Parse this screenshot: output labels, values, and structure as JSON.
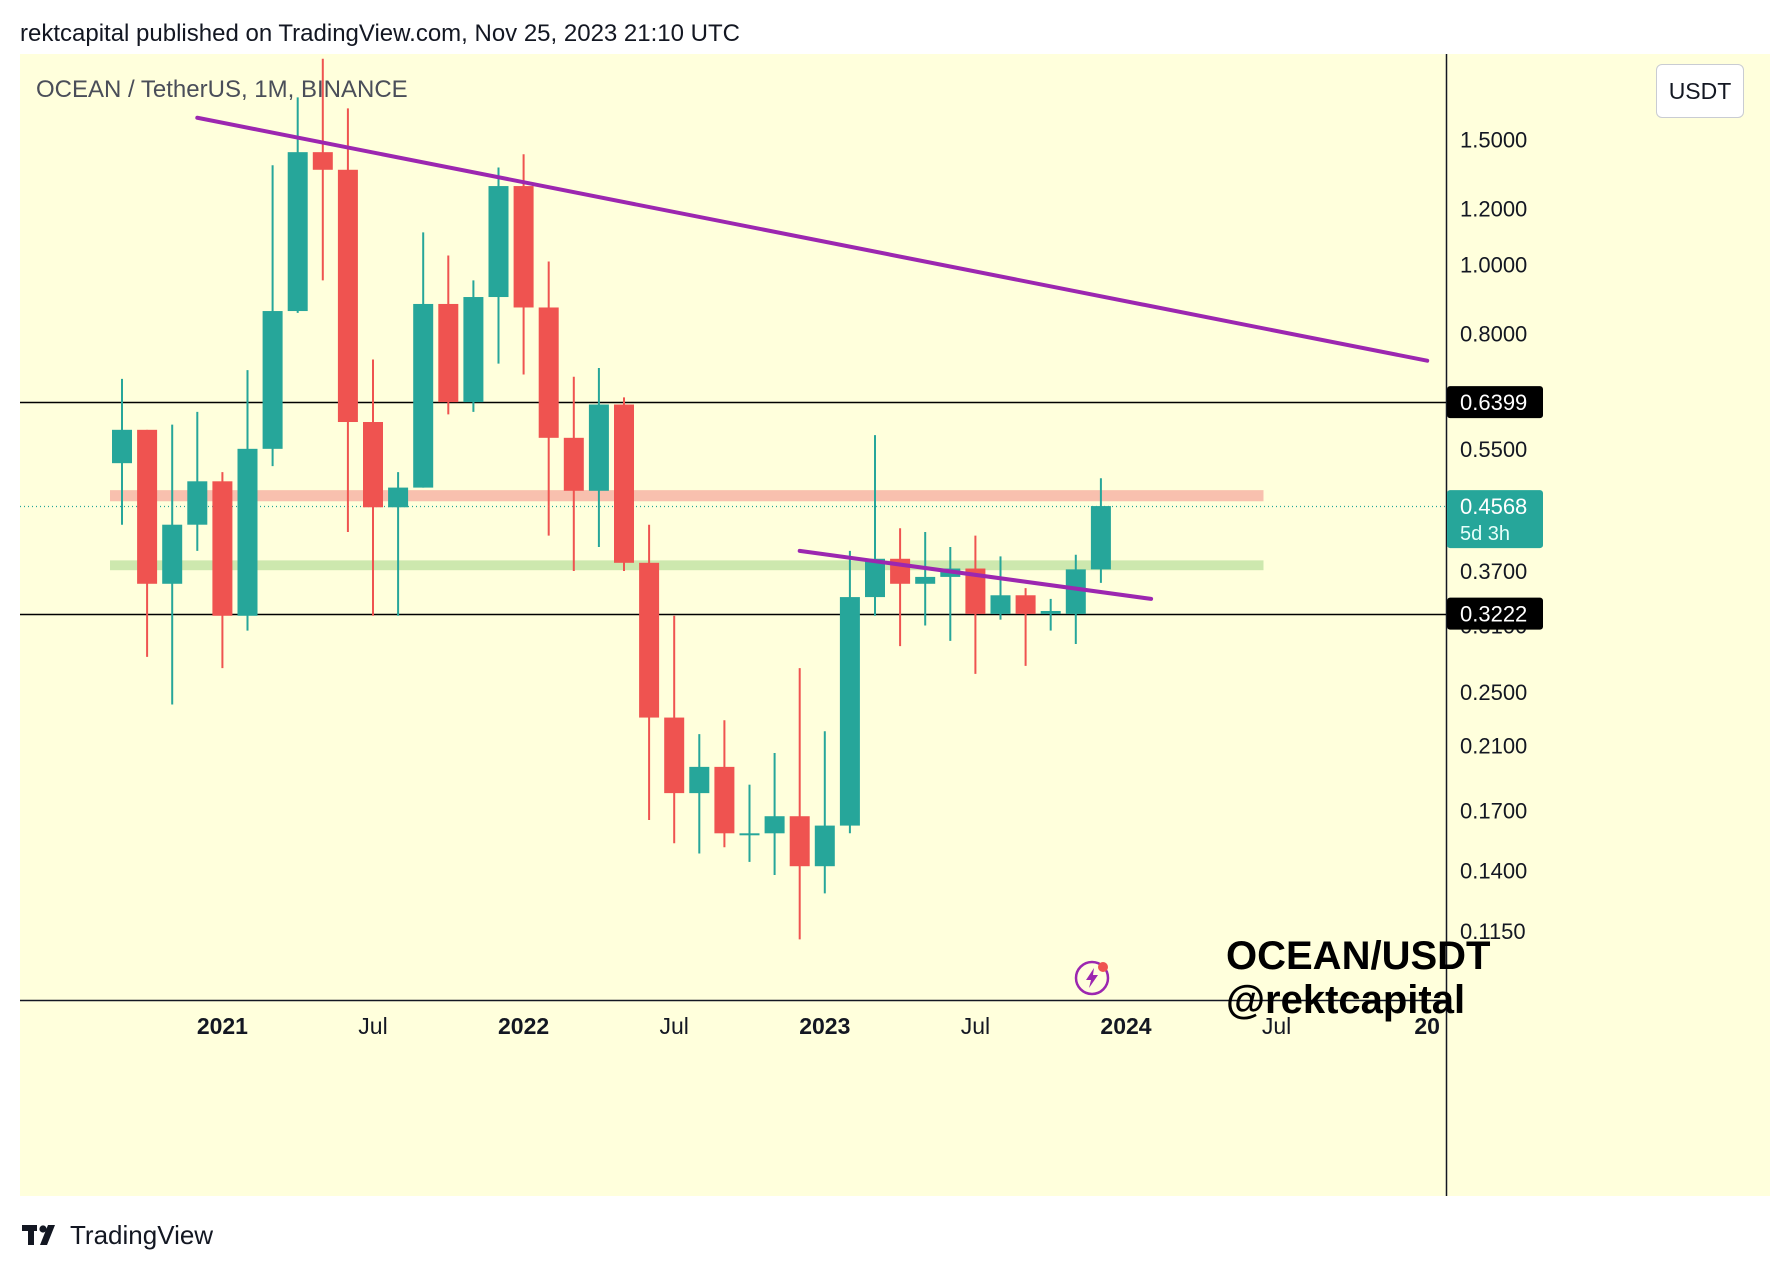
{
  "header": {
    "text": "rektcapital published on TradingView.com, Nov 25, 2023 21:10 UTC"
  },
  "symbol_label": "OCEAN / TetherUS, 1M, BINANCE",
  "currency": "USDT",
  "watermark": {
    "line1": "OCEAN/USDT",
    "line2": "@rektcapital"
  },
  "footer": {
    "brand": "TradingView",
    "icon": "tradingview-logo-icon"
  },
  "colors": {
    "background": "#ffffdc",
    "up": "#26a69a",
    "down": "#ef5350",
    "trendline": "#9c27b0",
    "resistance_zone": "#f7b9a8",
    "support_zone": "#c8e6a8",
    "horizontal_level": "#000000",
    "price_label_bg": "#000000",
    "last_price_bg": "#26a69a"
  },
  "chart_data": {
    "type": "candlestick",
    "title": "",
    "xlabel": "",
    "ylabel": "",
    "y_scale": "log",
    "ylim": [
      0.092,
      1.98
    ],
    "x_ticks": [
      {
        "label": "2021",
        "date": "2021-01",
        "bold": true
      },
      {
        "label": "Jul",
        "date": "2021-07",
        "bold": false
      },
      {
        "label": "2022",
        "date": "2022-01",
        "bold": true
      },
      {
        "label": "Jul",
        "date": "2022-07",
        "bold": false
      },
      {
        "label": "2023",
        "date": "2023-01",
        "bold": true
      },
      {
        "label": "Jul",
        "date": "2023-07",
        "bold": false
      },
      {
        "label": "2024",
        "date": "2024-01",
        "bold": true
      },
      {
        "label": "Jul",
        "date": "2024-07",
        "bold": false
      },
      {
        "label": "20",
        "date": "2025-01",
        "bold": true
      }
    ],
    "y_ticks": [
      "1.5000",
      "1.2000",
      "1.0000",
      "0.8000",
      "0.5500",
      "0.3700",
      "0.3100",
      "0.2500",
      "0.2100",
      "0.1700",
      "0.1400",
      "0.1150"
    ],
    "candles": [
      {
        "date": "2020-09",
        "open": 0.525,
        "high": 0.69,
        "low": 0.43,
        "close": 0.585
      },
      {
        "date": "2020-10",
        "open": 0.585,
        "high": 0.585,
        "low": 0.28,
        "close": 0.355
      },
      {
        "date": "2020-11",
        "open": 0.355,
        "high": 0.595,
        "low": 0.24,
        "close": 0.43
      },
      {
        "date": "2020-12",
        "open": 0.43,
        "high": 0.62,
        "low": 0.395,
        "close": 0.495
      },
      {
        "date": "2021-01",
        "open": 0.495,
        "high": 0.51,
        "low": 0.27,
        "close": 0.32
      },
      {
        "date": "2021-02",
        "open": 0.32,
        "high": 0.71,
        "low": 0.305,
        "close": 0.55
      },
      {
        "date": "2021-03",
        "open": 0.55,
        "high": 1.38,
        "low": 0.52,
        "close": 0.86
      },
      {
        "date": "2021-04",
        "open": 0.86,
        "high": 1.72,
        "low": 0.855,
        "close": 1.44
      },
      {
        "date": "2021-05",
        "open": 1.44,
        "high": 1.95,
        "low": 0.95,
        "close": 1.36
      },
      {
        "date": "2021-06",
        "open": 1.36,
        "high": 1.66,
        "low": 0.42,
        "close": 0.6
      },
      {
        "date": "2021-07",
        "open": 0.6,
        "high": 0.735,
        "low": 0.32,
        "close": 0.455
      },
      {
        "date": "2021-08",
        "open": 0.455,
        "high": 0.51,
        "low": 0.32,
        "close": 0.485
      },
      {
        "date": "2021-09",
        "open": 0.485,
        "high": 1.11,
        "low": 0.485,
        "close": 0.88
      },
      {
        "date": "2021-10",
        "open": 0.88,
        "high": 1.03,
        "low": 0.615,
        "close": 0.64
      },
      {
        "date": "2021-11",
        "open": 0.64,
        "high": 0.95,
        "low": 0.62,
        "close": 0.9
      },
      {
        "date": "2021-12",
        "open": 0.9,
        "high": 1.37,
        "low": 0.725,
        "close": 1.29
      },
      {
        "date": "2022-01",
        "open": 1.29,
        "high": 1.43,
        "low": 0.7,
        "close": 0.87
      },
      {
        "date": "2022-02",
        "open": 0.87,
        "high": 1.01,
        "low": 0.415,
        "close": 0.57
      },
      {
        "date": "2022-03",
        "open": 0.57,
        "high": 0.695,
        "low": 0.37,
        "close": 0.48
      },
      {
        "date": "2022-04",
        "open": 0.48,
        "high": 0.715,
        "low": 0.4,
        "close": 0.635
      },
      {
        "date": "2022-05",
        "open": 0.635,
        "high": 0.65,
        "low": 0.37,
        "close": 0.38
      },
      {
        "date": "2022-06",
        "open": 0.38,
        "high": 0.43,
        "low": 0.165,
        "close": 0.23
      },
      {
        "date": "2022-07",
        "open": 0.23,
        "high": 0.32,
        "low": 0.153,
        "close": 0.18
      },
      {
        "date": "2022-08",
        "open": 0.18,
        "high": 0.218,
        "low": 0.148,
        "close": 0.196
      },
      {
        "date": "2022-09",
        "open": 0.196,
        "high": 0.228,
        "low": 0.151,
        "close": 0.158
      },
      {
        "date": "2022-10",
        "open": 0.158,
        "high": 0.185,
        "low": 0.144,
        "close": 0.158
      },
      {
        "date": "2022-11",
        "open": 0.158,
        "high": 0.205,
        "low": 0.138,
        "close": 0.167
      },
      {
        "date": "2022-12",
        "open": 0.167,
        "high": 0.27,
        "low": 0.112,
        "close": 0.142
      },
      {
        "date": "2023-01",
        "open": 0.142,
        "high": 0.22,
        "low": 0.13,
        "close": 0.162
      },
      {
        "date": "2023-02",
        "open": 0.162,
        "high": 0.395,
        "low": 0.158,
        "close": 0.34
      },
      {
        "date": "2023-03",
        "open": 0.34,
        "high": 0.575,
        "low": 0.32,
        "close": 0.385
      },
      {
        "date": "2023-04",
        "open": 0.385,
        "high": 0.425,
        "low": 0.29,
        "close": 0.355
      },
      {
        "date": "2023-05",
        "open": 0.355,
        "high": 0.42,
        "low": 0.31,
        "close": 0.363
      },
      {
        "date": "2023-06",
        "open": 0.363,
        "high": 0.4,
        "low": 0.295,
        "close": 0.373
      },
      {
        "date": "2023-07",
        "open": 0.373,
        "high": 0.415,
        "low": 0.265,
        "close": 0.322
      },
      {
        "date": "2023-08",
        "open": 0.322,
        "high": 0.388,
        "low": 0.316,
        "close": 0.342
      },
      {
        "date": "2023-09",
        "open": 0.342,
        "high": 0.35,
        "low": 0.272,
        "close": 0.322
      },
      {
        "date": "2023-10",
        "open": 0.322,
        "high": 0.338,
        "low": 0.305,
        "close": 0.325
      },
      {
        "date": "2023-11",
        "open": 0.322,
        "high": 0.39,
        "low": 0.292,
        "close": 0.372
      },
      {
        "date": "2023-12",
        "open": 0.372,
        "high": 0.5,
        "low": 0.356,
        "close": 0.4568
      }
    ],
    "horizontal_levels": [
      {
        "price": 0.6399,
        "label": "0.6399"
      },
      {
        "price": 0.3222,
        "label": "0.3222"
      }
    ],
    "last_price": {
      "price": 0.4568,
      "label": "0.4568",
      "countdown": "5d 3h"
    },
    "zones": [
      {
        "name": "resistance",
        "from_date": "2020-09",
        "to_date": "2024-06",
        "low": 0.464,
        "high": 0.481
      },
      {
        "name": "support",
        "from_date": "2020-09",
        "to_date": "2024-06",
        "low": 0.371,
        "high": 0.383
      }
    ],
    "trendlines": [
      {
        "from": {
          "date": "2020-12",
          "price": 1.61
        },
        "to": {
          "date": "2025-01",
          "price": 0.732
        }
      },
      {
        "from": {
          "date": "2022-12",
          "price": 0.395
        },
        "to": {
          "date": "2024-02",
          "price": 0.338
        }
      }
    ]
  }
}
